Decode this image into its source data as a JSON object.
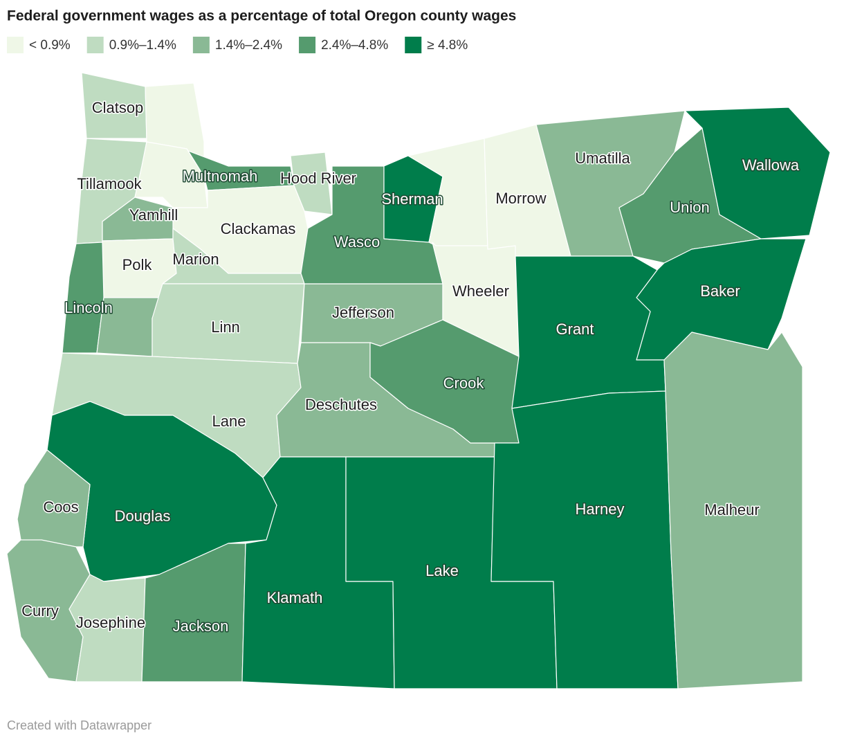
{
  "title": "Federal government wages as a percentage of total Oregon county wages",
  "legend": [
    {
      "label": "< 0.9%",
      "color": "#eff7e7"
    },
    {
      "label": "0.9%–1.4%",
      "color": "#bfdcc1"
    },
    {
      "label": "1.4%–2.4%",
      "color": "#8ab995"
    },
    {
      "label": "2.4%–4.8%",
      "color": "#559b6e"
    },
    {
      "label": "≥ 4.8%",
      "color": "#007d4b"
    }
  ],
  "counties": [
    {
      "name": "Clatsop",
      "color": "#bfdcc1"
    },
    {
      "name": null,
      "color": "#eff7e7"
    },
    {
      "name": "Tillamook",
      "color": "#bfdcc1"
    },
    {
      "name": null,
      "color": "#eff7e7"
    },
    {
      "name": "Multnomah",
      "color": "#559b6e"
    },
    {
      "name": "Hood River",
      "color": "#bfdcc1"
    },
    {
      "name": "Clackamas",
      "color": "#eff7e7"
    },
    {
      "name": "Yamhill",
      "color": "#8ab995"
    },
    {
      "name": "Polk",
      "color": "#eff7e7"
    },
    {
      "name": "Marion",
      "color": "#bfdcc1"
    },
    {
      "name": "Lincoln",
      "color": "#559b6e"
    },
    {
      "name": null,
      "color": "#8ab995"
    },
    {
      "name": "Linn",
      "color": "#bfdcc1"
    },
    {
      "name": "Lane",
      "color": "#bfdcc1"
    },
    {
      "name": "Douglas",
      "color": "#007d4b"
    },
    {
      "name": "Coos",
      "color": "#8ab995"
    },
    {
      "name": "Curry",
      "color": "#8ab995"
    },
    {
      "name": "Josephine",
      "color": "#bfdcc1"
    },
    {
      "name": "Jackson",
      "color": "#559b6e"
    },
    {
      "name": "Klamath",
      "color": "#007d4b"
    },
    {
      "name": "Lake",
      "color": "#007d4b"
    },
    {
      "name": "Deschutes",
      "color": "#8ab995"
    },
    {
      "name": "Jefferson",
      "color": "#8ab995"
    },
    {
      "name": "Crook",
      "color": "#559b6e"
    },
    {
      "name": "Wasco",
      "color": "#559b6e"
    },
    {
      "name": "Sherman",
      "color": "#007d4b"
    },
    {
      "name": null,
      "color": "#eff7e7"
    },
    {
      "name": "Wheeler",
      "color": "#eff7e7"
    },
    {
      "name": "Morrow",
      "color": "#eff7e7"
    },
    {
      "name": "Umatilla",
      "color": "#8ab995"
    },
    {
      "name": "Union",
      "color": "#559b6e"
    },
    {
      "name": "Wallowa",
      "color": "#007d4b"
    },
    {
      "name": "Baker",
      "color": "#007d4b"
    },
    {
      "name": "Grant",
      "color": "#007d4b"
    },
    {
      "name": "Harney",
      "color": "#007d4b"
    },
    {
      "name": "Malheur",
      "color": "#8ab995"
    }
  ],
  "footer": "Created with Datawrapper"
}
